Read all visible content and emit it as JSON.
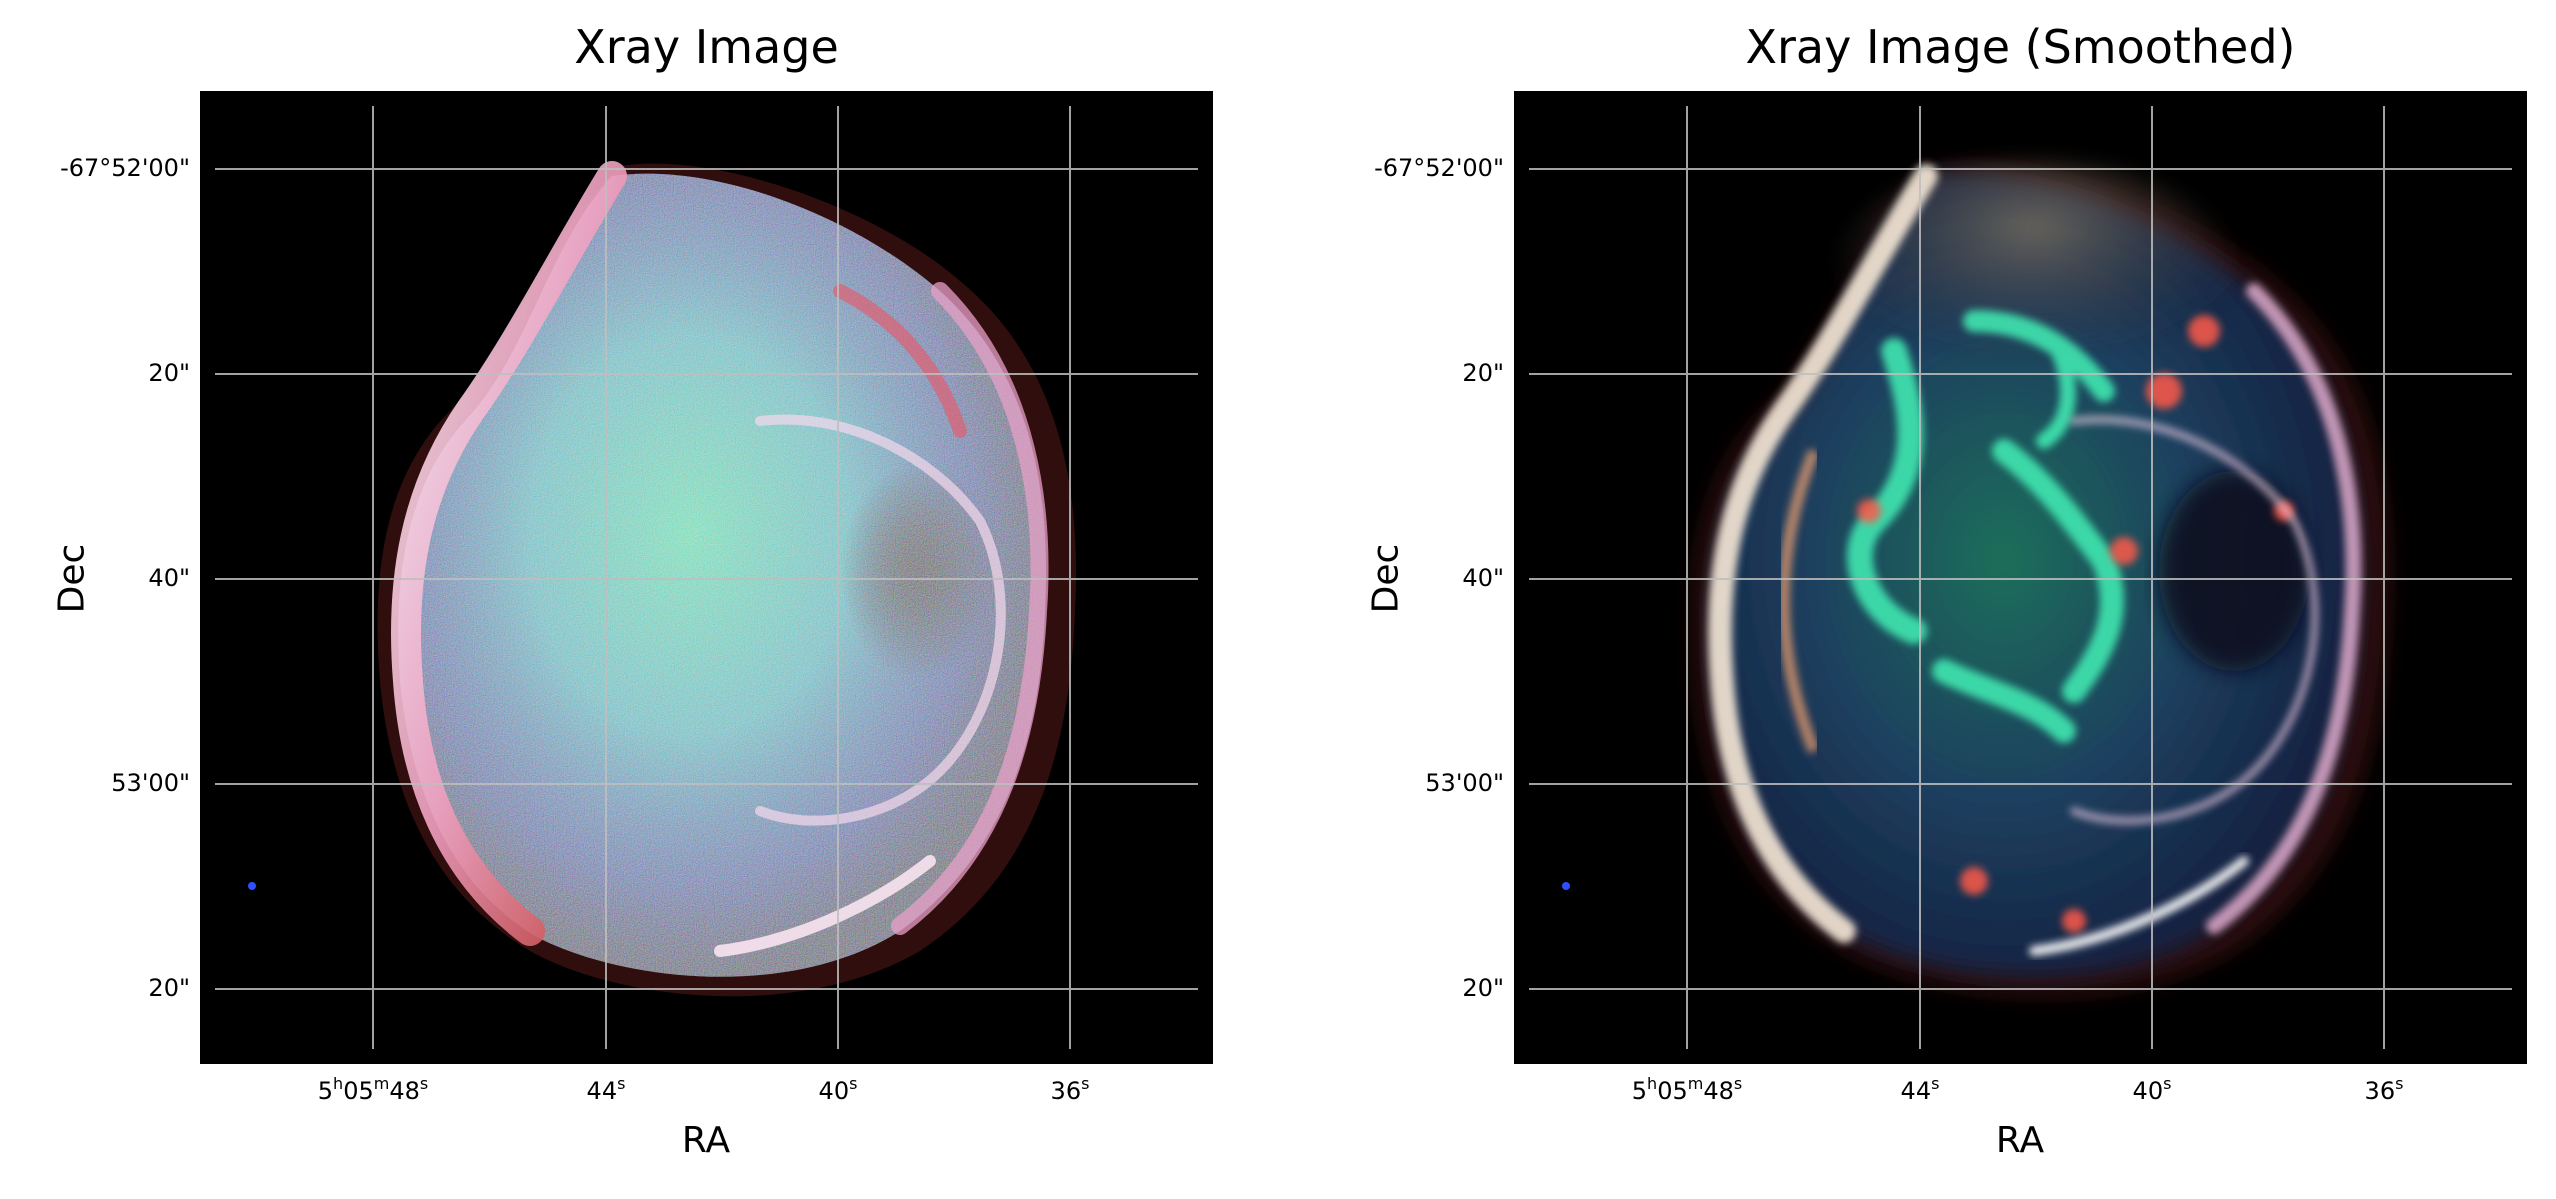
{
  "figure": {
    "panels": [
      {
        "title": "Xray Image",
        "xlabel": "RA",
        "ylabel": "Dec",
        "y_ticks": [
          "-67°52'00\"",
          "20\"",
          "40\"",
          "53'00\"",
          "20\""
        ],
        "x_ticks": [
          {
            "base": "5",
            "h": "h",
            "mid": "05",
            "m": "m",
            "sec": "48",
            "s": "s"
          },
          {
            "base": "",
            "h": "",
            "mid": "",
            "m": "",
            "sec": "44",
            "s": "s"
          },
          {
            "base": "",
            "h": "",
            "mid": "",
            "m": "",
            "sec": "40",
            "s": "s"
          },
          {
            "base": "",
            "h": "",
            "mid": "",
            "m": "",
            "sec": "36",
            "s": "s"
          }
        ],
        "style": "noisy"
      },
      {
        "title": "Xray Image (Smoothed)",
        "xlabel": "RA",
        "ylabel": "Dec",
        "y_ticks": [
          "-67°52'00\"",
          "20\"",
          "40\"",
          "53'00\"",
          "20\""
        ],
        "x_ticks": [
          {
            "base": "5",
            "h": "h",
            "mid": "05",
            "m": "m",
            "sec": "48",
            "s": "s"
          },
          {
            "base": "",
            "h": "",
            "mid": "",
            "m": "",
            "sec": "44",
            "s": "s"
          },
          {
            "base": "",
            "h": "",
            "mid": "",
            "m": "",
            "sec": "40",
            "s": "s"
          },
          {
            "base": "",
            "h": "",
            "mid": "",
            "m": "",
            "sec": "36",
            "s": "s"
          }
        ],
        "style": "smoothed"
      }
    ],
    "colors": {
      "background": "#000000",
      "grid": "#bfbfbf",
      "shell_rim": "#f4d7e6",
      "shell_red": "#e0503c",
      "interior_green": "#36d1a4",
      "interior_blue": "#2f4f9c"
    }
  }
}
